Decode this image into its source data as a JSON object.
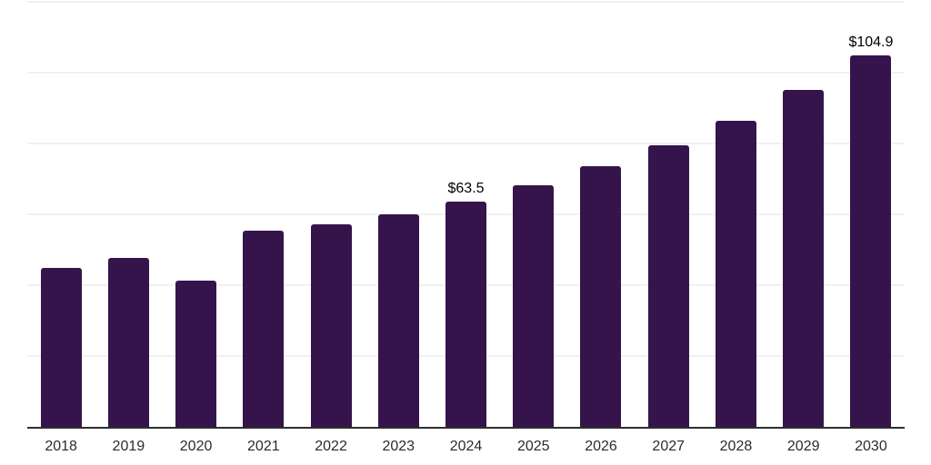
{
  "chart_data": {
    "type": "bar",
    "title": "",
    "xlabel": "",
    "ylabel": "",
    "categories": [
      "2018",
      "2019",
      "2020",
      "2021",
      "2022",
      "2023",
      "2024",
      "2025",
      "2026",
      "2027",
      "2028",
      "2029",
      "2030"
    ],
    "values": [
      44.8,
      47.6,
      41.2,
      55.3,
      57.1,
      59.9,
      63.5,
      68.3,
      73.5,
      79.4,
      86.5,
      95.2,
      104.9
    ],
    "data_labels": [
      "",
      "",
      "",
      "",
      "",
      "",
      "$63.5",
      "",
      "",
      "",
      "",
      "",
      "$104.9"
    ],
    "ylim": [
      0,
      120
    ],
    "gridline_values": [
      20,
      40,
      60,
      80,
      100,
      120
    ],
    "grid": "horizontal",
    "legend_position": "none",
    "y_axis_tick_labels_visible": false
  },
  "colors": {
    "bar_fill": "#35144B",
    "gridline": "#f1f1f1",
    "axis_line": "#2e2e2e",
    "data_label_text": "#000000",
    "x_tick_text": "#2b2b2b",
    "background": "#ffffff"
  }
}
